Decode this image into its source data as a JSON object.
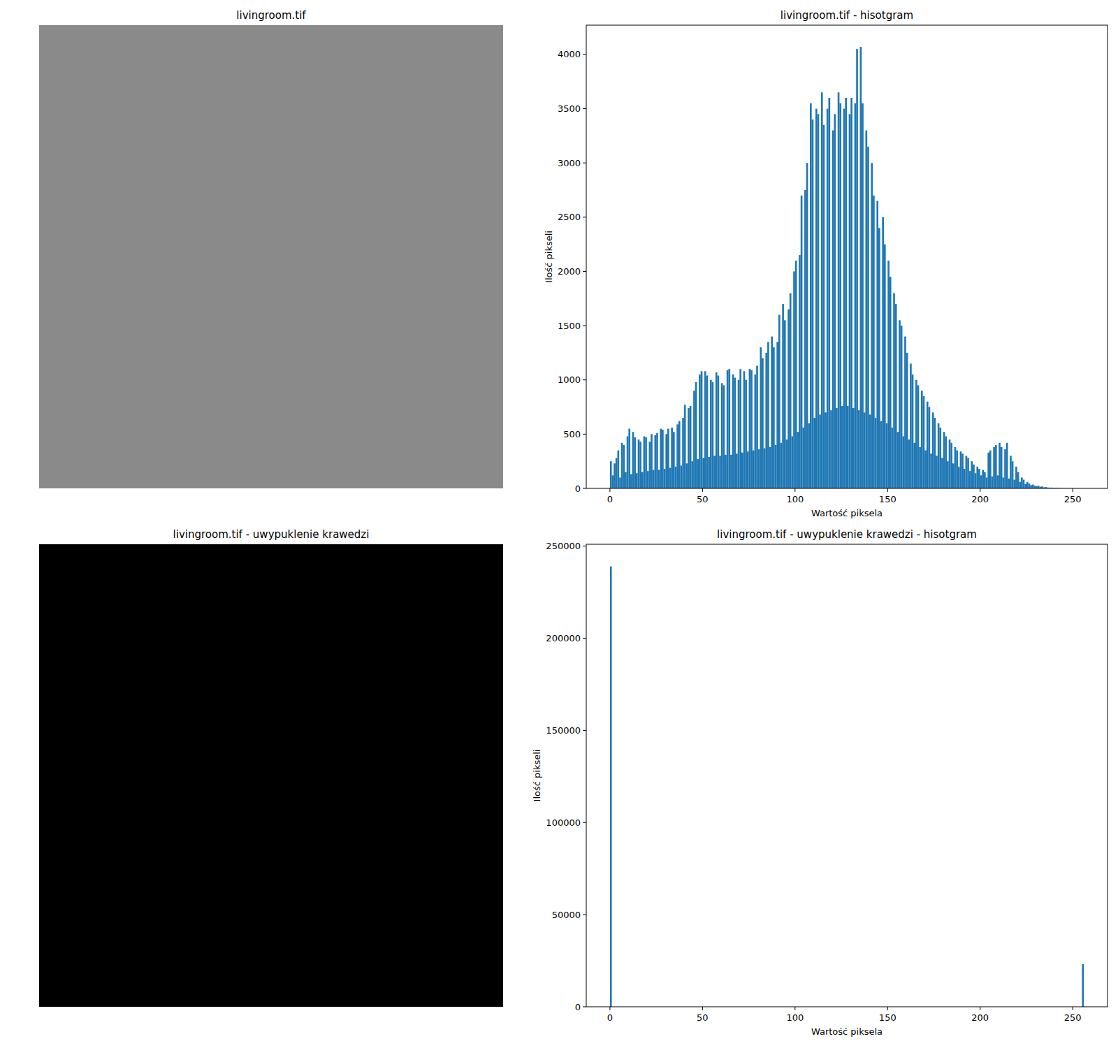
{
  "chart_data": [
    {
      "type": "image",
      "title": "livingroom.tif"
    },
    {
      "type": "histogram",
      "title": "livingroom.tif - hisotgram",
      "x_label": "Wartość piksela",
      "y_label": "Ilość pikseli",
      "color": "#1f77b4",
      "grid": false,
      "bins": [
        0,
        1,
        2,
        3,
        4,
        5,
        6,
        7,
        8,
        9,
        10,
        11,
        12,
        13,
        14,
        15,
        16,
        17,
        18,
        19,
        20,
        21,
        22,
        23,
        24,
        25,
        26,
        27,
        28,
        29,
        30,
        31,
        32,
        33,
        34,
        35,
        36,
        37,
        38,
        39,
        40,
        41,
        42,
        43,
        44,
        45,
        46,
        47,
        48,
        49,
        50,
        51,
        52,
        53,
        54,
        55,
        56,
        57,
        58,
        59,
        60,
        61,
        62,
        63,
        64,
        65,
        66,
        67,
        68,
        69,
        70,
        71,
        72,
        73,
        74,
        75,
        76,
        77,
        78,
        79,
        80,
        81,
        82,
        83,
        84,
        85,
        86,
        87,
        88,
        89,
        90,
        91,
        92,
        93,
        94,
        95,
        96,
        97,
        98,
        99,
        100,
        101,
        102,
        103,
        104,
        105,
        106,
        107,
        108,
        109,
        110,
        111,
        112,
        113,
        114,
        115,
        116,
        117,
        118,
        119,
        120,
        121,
        122,
        123,
        124,
        125,
        126,
        127,
        128,
        129,
        130,
        131,
        132,
        133,
        134,
        135,
        136,
        137,
        138,
        139,
        140,
        141,
        142,
        143,
        144,
        145,
        146,
        147,
        148,
        149,
        150,
        151,
        152,
        153,
        154,
        155,
        156,
        157,
        158,
        159,
        160,
        161,
        162,
        163,
        164,
        165,
        166,
        167,
        168,
        169,
        170,
        171,
        172,
        173,
        174,
        175,
        176,
        177,
        178,
        179,
        180,
        181,
        182,
        183,
        184,
        185,
        186,
        187,
        188,
        189,
        190,
        191,
        192,
        193,
        194,
        195,
        196,
        197,
        198,
        199,
        200,
        201,
        202,
        203,
        204,
        205,
        206,
        207,
        208,
        209,
        210,
        211,
        212,
        213,
        214,
        215,
        216,
        217,
        218,
        219,
        220,
        221,
        222,
        223,
        224,
        225,
        226,
        227,
        228,
        229,
        230,
        231,
        232,
        233,
        234,
        235,
        236,
        237,
        238,
        239,
        240,
        241,
        242,
        243,
        244,
        245,
        246,
        247,
        248,
        249,
        250,
        251,
        252,
        253,
        254,
        255,
        256
      ],
      "values": [
        250,
        120,
        230,
        280,
        350,
        100,
        420,
        400,
        150,
        480,
        550,
        130,
        520,
        470,
        140,
        450,
        430,
        150,
        480,
        470,
        160,
        430,
        500,
        170,
        490,
        510,
        170,
        550,
        540,
        180,
        500,
        550,
        190,
        560,
        520,
        200,
        590,
        620,
        210,
        650,
        770,
        230,
        740,
        760,
        250,
        900,
        980,
        270,
        1050,
        1080,
        280,
        1080,
        1040,
        290,
        1000,
        980,
        300,
        1070,
        1040,
        300,
        970,
        950,
        310,
        1090,
        1100,
        310,
        1050,
        1020,
        320,
        1000,
        1100,
        330,
        1080,
        1000,
        340,
        1100,
        1090,
        350,
        1050,
        1130,
        360,
        1300,
        1200,
        370,
        1250,
        1350,
        380,
        1400,
        1300,
        400,
        1350,
        1600,
        420,
        1700,
        1550,
        450,
        1650,
        1800,
        480,
        2000,
        2100,
        520,
        2150,
        2700,
        560,
        2750,
        3000,
        600,
        3550,
        3400,
        650,
        3500,
        3450,
        680,
        3650,
        3350,
        700,
        3500,
        3600,
        720,
        3300,
        3450,
        740,
        3650,
        3550,
        760,
        3500,
        3600,
        760,
        3450,
        3600,
        740,
        3550,
        4050,
        720,
        4070,
        3550,
        700,
        3300,
        3150,
        680,
        3000,
        2700,
        650,
        2650,
        2400,
        620,
        2500,
        2250,
        600,
        2100,
        1950,
        560,
        1800,
        1700,
        520,
        1550,
        1500,
        480,
        1400,
        1250,
        450,
        1150,
        1050,
        420,
        1000,
        950,
        380,
        900,
        850,
        350,
        800,
        750,
        320,
        700,
        650,
        300,
        600,
        560,
        280,
        520,
        480,
        250,
        450,
        420,
        230,
        380,
        350,
        200,
        340,
        320,
        180,
        300,
        280,
        160,
        250,
        220,
        140,
        200,
        180,
        120,
        170,
        150,
        100,
        330,
        350,
        110,
        380,
        400,
        120,
        420,
        380,
        100,
        360,
        420,
        90,
        300,
        250,
        80,
        200,
        150,
        60,
        100,
        80,
        40,
        60,
        45,
        30,
        35,
        25,
        20,
        25,
        15,
        18,
        10,
        12,
        8,
        6,
        7,
        5,
        4,
        5,
        3,
        3,
        2,
        2,
        1,
        2,
        1,
        1,
        1,
        0,
        1,
        0,
        0,
        0
      ],
      "xlim": [
        -12.8,
        268.8
      ],
      "ylim": [
        0,
        4270
      ],
      "xticks": [
        0,
        50,
        100,
        150,
        200,
        250
      ],
      "yticks": [
        0,
        500,
        1000,
        1500,
        2000,
        2500,
        3000,
        3500,
        4000
      ]
    },
    {
      "type": "image",
      "title": "livingroom.tif - uwypuklenie krawedzi"
    },
    {
      "type": "histogram",
      "title": "livingroom.tif - uwypuklenie krawedzi - hisotgram",
      "x_label": "Wartość piksela",
      "y_label": "Ilość pikseli",
      "color": "#1f77b4",
      "grid": false,
      "bins": [
        0,
        1,
        2,
        3,
        4,
        5,
        6,
        7,
        8,
        9,
        10,
        11,
        12,
        13,
        14,
        15,
        16,
        17,
        18,
        19,
        20,
        21,
        22,
        23,
        24,
        25,
        26,
        27,
        28,
        29,
        30,
        31,
        32,
        33,
        34,
        35,
        36,
        37,
        38,
        39,
        40,
        41,
        42,
        43,
        44,
        45,
        46,
        47,
        48,
        49,
        50,
        51,
        52,
        53,
        54,
        55,
        56,
        57,
        58,
        59,
        60,
        61,
        62,
        63,
        64,
        65,
        66,
        67,
        68,
        69,
        70,
        71,
        72,
        73,
        74,
        75,
        76,
        77,
        78,
        79,
        80,
        81,
        82,
        83,
        84,
        85,
        86,
        87,
        88,
        89,
        90,
        91,
        92,
        93,
        94,
        95,
        96,
        97,
        98,
        99,
        100,
        101,
        102,
        103,
        104,
        105,
        106,
        107,
        108,
        109,
        110,
        111,
        112,
        113,
        114,
        115,
        116,
        117,
        118,
        119,
        120,
        121,
        122,
        123,
        124,
        125,
        126,
        127,
        128,
        129,
        130,
        131,
        132,
        133,
        134,
        135,
        136,
        137,
        138,
        139,
        140,
        141,
        142,
        143,
        144,
        145,
        146,
        147,
        148,
        149,
        150,
        151,
        152,
        153,
        154,
        155,
        156,
        157,
        158,
        159,
        160,
        161,
        162,
        163,
        164,
        165,
        166,
        167,
        168,
        169,
        170,
        171,
        172,
        173,
        174,
        175,
        176,
        177,
        178,
        179,
        180,
        181,
        182,
        183,
        184,
        185,
        186,
        187,
        188,
        189,
        190,
        191,
        192,
        193,
        194,
        195,
        196,
        197,
        198,
        199,
        200,
        201,
        202,
        203,
        204,
        205,
        206,
        207,
        208,
        209,
        210,
        211,
        212,
        213,
        214,
        215,
        216,
        217,
        218,
        219,
        220,
        221,
        222,
        223,
        224,
        225,
        226,
        227,
        228,
        229,
        230,
        231,
        232,
        233,
        234,
        235,
        236,
        237,
        238,
        239,
        240,
        241,
        242,
        243,
        244,
        245,
        246,
        247,
        248,
        249,
        250,
        251,
        252,
        253,
        254,
        255,
        256
      ],
      "values": [
        239000,
        0,
        0,
        0,
        0,
        0,
        0,
        0,
        0,
        0,
        0,
        0,
        0,
        0,
        0,
        0,
        0,
        0,
        0,
        0,
        0,
        0,
        0,
        0,
        0,
        0,
        0,
        0,
        0,
        0,
        0,
        0,
        0,
        0,
        0,
        0,
        0,
        0,
        0,
        0,
        0,
        0,
        0,
        0,
        0,
        0,
        0,
        0,
        0,
        0,
        0,
        0,
        0,
        0,
        0,
        0,
        0,
        0,
        0,
        0,
        0,
        0,
        0,
        0,
        0,
        0,
        0,
        0,
        0,
        0,
        0,
        0,
        0,
        0,
        0,
        0,
        0,
        0,
        0,
        0,
        0,
        0,
        0,
        0,
        0,
        0,
        0,
        0,
        0,
        0,
        0,
        0,
        0,
        0,
        0,
        0,
        0,
        0,
        0,
        0,
        0,
        0,
        0,
        0,
        0,
        0,
        0,
        0,
        0,
        0,
        0,
        0,
        0,
        0,
        0,
        0,
        0,
        0,
        0,
        0,
        0,
        0,
        0,
        0,
        0,
        0,
        0,
        0,
        0,
        0,
        0,
        0,
        0,
        0,
        0,
        0,
        0,
        0,
        0,
        0,
        0,
        0,
        0,
        0,
        0,
        0,
        0,
        0,
        0,
        0,
        0,
        0,
        0,
        0,
        0,
        0,
        0,
        0,
        0,
        0,
        0,
        0,
        0,
        0,
        0,
        0,
        0,
        0,
        0,
        0,
        0,
        0,
        0,
        0,
        0,
        0,
        0,
        0,
        0,
        0,
        0,
        0,
        0,
        0,
        0,
        0,
        0,
        0,
        0,
        0,
        0,
        0,
        0,
        0,
        0,
        0,
        0,
        0,
        0,
        0,
        0,
        0,
        0,
        0,
        0,
        0,
        0,
        0,
        0,
        0,
        0,
        0,
        0,
        0,
        0,
        0,
        0,
        0,
        0,
        0,
        0,
        0,
        0,
        0,
        0,
        0,
        0,
        0,
        0,
        0,
        0,
        0,
        0,
        0,
        0,
        0,
        0,
        0,
        0,
        0,
        0,
        0,
        0,
        0,
        0,
        0,
        0,
        0,
        0,
        0,
        0,
        0,
        0,
        0,
        0,
        23144
      ],
      "xlim": [
        -12.8,
        268.8
      ],
      "ylim": [
        0,
        251000
      ],
      "xticks": [
        0,
        50,
        100,
        150,
        200,
        250
      ],
      "yticks": [
        0,
        50000,
        100000,
        150000,
        200000,
        250000
      ]
    }
  ]
}
